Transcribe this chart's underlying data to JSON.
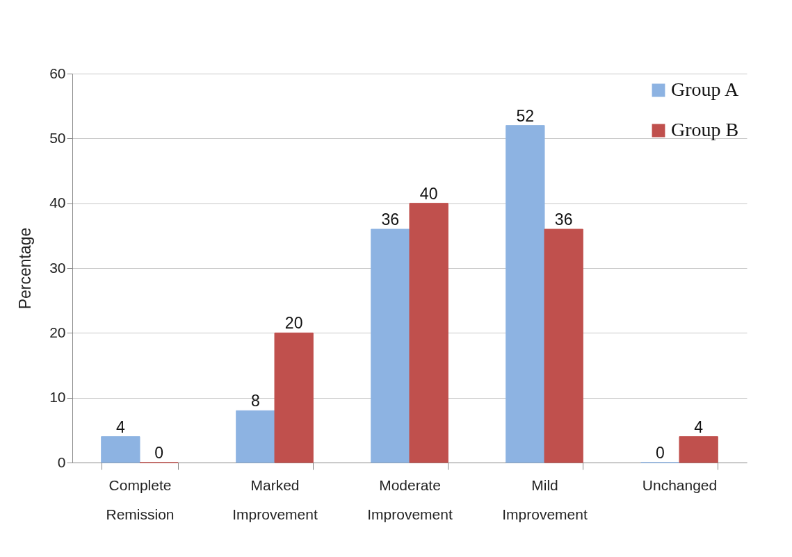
{
  "chart_data": {
    "type": "bar",
    "ylabel": "Percentage",
    "categories": [
      "Complete Remission",
      "Marked Improvement",
      "Moderate Improvement",
      "Mild Improvement",
      "Unchanged"
    ],
    "series": [
      {
        "name": "Group A",
        "color": "#8db3e2",
        "values": [
          4,
          8,
          36,
          52,
          0
        ]
      },
      {
        "name": "Group B",
        "color": "#c0504d",
        "values": [
          0,
          20,
          40,
          36,
          4
        ]
      }
    ],
    "ylim": [
      0,
      60
    ],
    "yticks": [
      0,
      10,
      20,
      30,
      40,
      50,
      60
    ],
    "grid": "y",
    "legend": "top right",
    "data_labels": true
  }
}
